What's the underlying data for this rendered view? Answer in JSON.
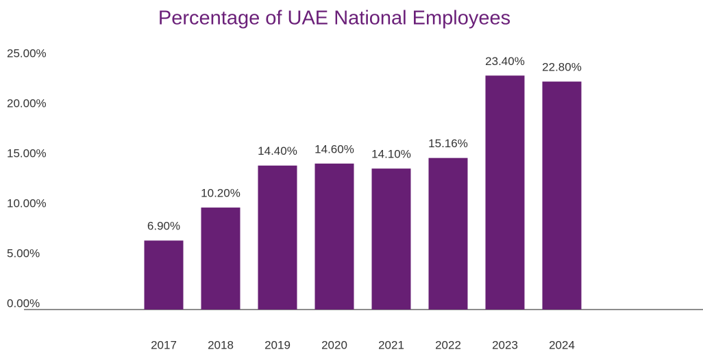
{
  "chart_data": {
    "type": "bar",
    "title": "Percentage of UAE National Employees",
    "categories": [
      "2017",
      "2018",
      "2019",
      "2020",
      "2021",
      "2022",
      "2023",
      "2024"
    ],
    "values": [
      6.9,
      10.2,
      14.4,
      14.6,
      14.1,
      15.16,
      23.4,
      22.8
    ],
    "value_labels": [
      "6.90%",
      "10.20%",
      "14.40%",
      "14.60%",
      "14.10%",
      "15.16%",
      "23.40%",
      "22.80%"
    ],
    "color": "#671f74",
    "ylim": [
      0,
      25
    ],
    "yticks": [
      {
        "value": 0,
        "label": "0.00%"
      },
      {
        "value": 5,
        "label": "5.00%"
      },
      {
        "value": 10,
        "label": "10.00%"
      },
      {
        "value": 15,
        "label": "15.00%"
      },
      {
        "value": 20,
        "label": "20.00%"
      },
      {
        "value": 25,
        "label": "25.00%"
      }
    ],
    "grid": false
  }
}
